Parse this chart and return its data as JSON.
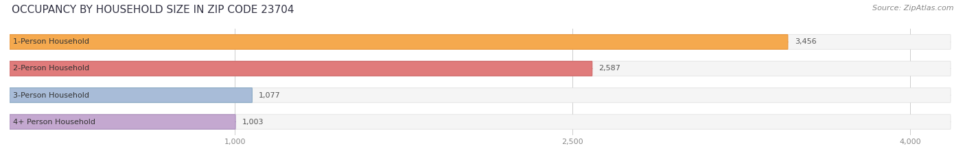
{
  "title": "OCCUPANCY BY HOUSEHOLD SIZE IN ZIP CODE 23704",
  "source": "Source: ZipAtlas.com",
  "categories": [
    "1-Person Household",
    "2-Person Household",
    "3-Person Household",
    "4+ Person Household"
  ],
  "values": [
    3456,
    2587,
    1077,
    1003
  ],
  "bar_colors": [
    "#F5A94E",
    "#E07B7B",
    "#A8BCD8",
    "#C4A8D0"
  ],
  "bar_edge_colors": [
    "#E8943A",
    "#CC6666",
    "#8AAAC4",
    "#AA8EBC"
  ],
  "label_colors": [
    "#8B6914",
    "#993333",
    "#445566",
    "#664477"
  ],
  "background_color": "#FFFFFF",
  "bar_bg_color": "#F0F0F0",
  "xlim": [
    0,
    4200
  ],
  "xticks": [
    1000,
    2500,
    4000
  ],
  "bar_height": 0.55,
  "figsize": [
    14.06,
    2.33
  ],
  "dpi": 100
}
